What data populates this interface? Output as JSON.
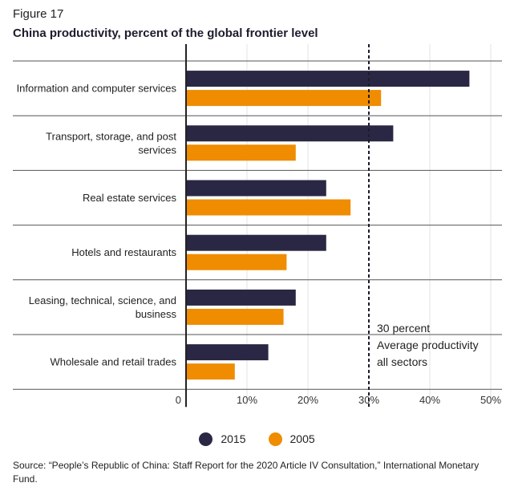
{
  "figure_label": "Figure 17",
  "chart_data": {
    "type": "bar",
    "orientation": "horizontal",
    "title": "China productivity, percent of the global frontier level",
    "categories": [
      [
        "Information and computer services"
      ],
      [
        "Transport, storage, and post",
        "services"
      ],
      [
        "Real estate services"
      ],
      [
        "Hotels and restaurants"
      ],
      [
        "Leasing, technical, science, and",
        "business"
      ],
      [
        "Wholesale and retail trades"
      ]
    ],
    "series": [
      {
        "name": "2015",
        "color": "#2a2744",
        "values": [
          46.5,
          34,
          23,
          23,
          18,
          13.5
        ]
      },
      {
        "name": "2005",
        "color": "#ef8c00",
        "values": [
          32,
          18,
          27,
          16.5,
          16,
          8
        ]
      }
    ],
    "xlim": [
      0,
      50
    ],
    "xticks": [
      0,
      10,
      20,
      30,
      40,
      50
    ],
    "xtick_labels": [
      "0",
      "10%",
      "20%",
      "30%",
      "40%",
      "50%"
    ],
    "reference_line": {
      "value": 30,
      "style": "dashed",
      "labels": [
        "30 percent",
        "Average productivity",
        "all sectors"
      ]
    },
    "legend_position": "bottom-center"
  },
  "source": "Source: “People’s Republic of China: Staff Report for the 2020 Article IV Consultation,” International Monetary Fund."
}
